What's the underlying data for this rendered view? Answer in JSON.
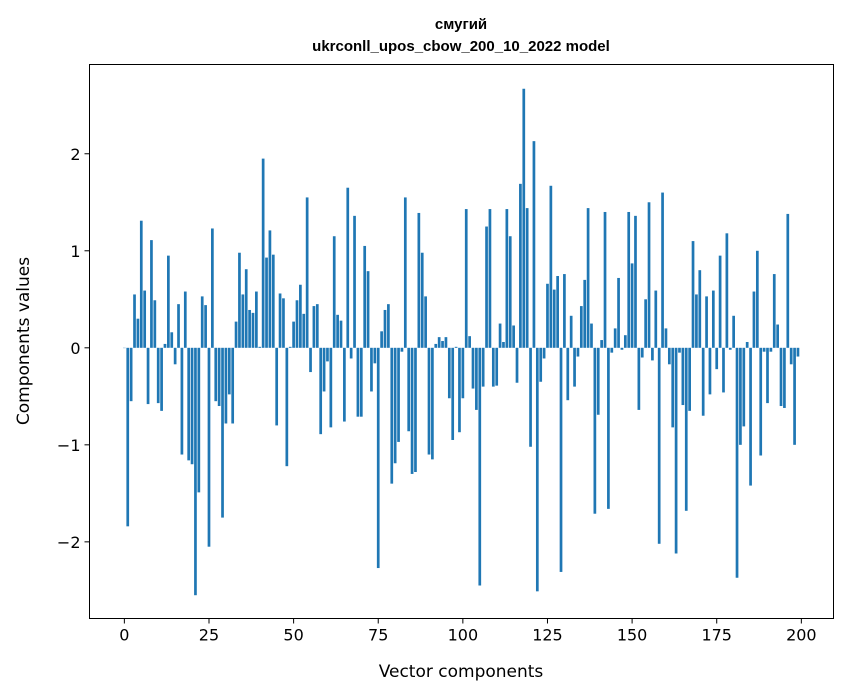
{
  "chart_data": {
    "type": "bar",
    "title": "смугий",
    "subtitle": "ukrconll_upos_cbow_200_10_2022 model",
    "xlabel": "Vector components",
    "ylabel": "Components values",
    "xlim": [
      -10.3,
      209.5
    ],
    "ylim": [
      -2.79,
      2.92
    ],
    "xticks": [
      0,
      25,
      50,
      75,
      100,
      125,
      150,
      175,
      200
    ],
    "xtick_labels": [
      "0",
      "25",
      "50",
      "75",
      "100",
      "125",
      "150",
      "175",
      "200"
    ],
    "yticks": [
      -2,
      -1,
      0,
      1,
      2
    ],
    "ytick_labels": [
      "−2",
      "−1",
      "0",
      "1",
      "2"
    ],
    "grid": false,
    "bar_color": "#1f77b4",
    "values": [
      0.0,
      -1.84,
      -0.55,
      0.55,
      0.3,
      1.31,
      0.59,
      -0.58,
      1.11,
      0.49,
      -0.57,
      -0.65,
      0.04,
      0.95,
      0.16,
      -0.17,
      0.45,
      -1.1,
      0.58,
      -1.16,
      -1.2,
      -2.55,
      -1.49,
      0.53,
      0.44,
      -2.05,
      1.23,
      -0.55,
      -0.6,
      -1.75,
      -0.78,
      -0.48,
      -0.78,
      0.27,
      0.98,
      0.55,
      0.81,
      0.39,
      0.36,
      0.58,
      0.01,
      1.95,
      0.93,
      1.21,
      0.96,
      -0.8,
      0.56,
      0.51,
      -1.22,
      0.01,
      0.27,
      0.49,
      0.65,
      0.35,
      1.55,
      -0.25,
      0.43,
      0.45,
      -0.89,
      -0.45,
      -0.14,
      -0.82,
      1.15,
      0.34,
      0.28,
      -0.76,
      1.65,
      -0.11,
      1.36,
      -0.71,
      -0.71,
      1.05,
      0.79,
      -0.45,
      -0.16,
      -2.27,
      0.17,
      0.39,
      0.45,
      -1.4,
      -1.19,
      -0.97,
      -0.04,
      1.55,
      -0.86,
      -1.3,
      -1.28,
      1.39,
      0.98,
      0.53,
      -1.1,
      -1.15,
      0.04,
      0.11,
      0.07,
      0.11,
      -0.52,
      -0.95,
      0.01,
      -0.87,
      -0.52,
      1.43,
      0.12,
      -0.42,
      -0.64,
      -2.45,
      -0.4,
      1.25,
      1.43,
      -0.4,
      -0.39,
      0.25,
      0.06,
      1.43,
      1.15,
      0.23,
      -0.36,
      1.69,
      2.67,
      1.44,
      -1.02,
      2.13,
      -2.51,
      -0.35,
      -0.11,
      0.66,
      1.67,
      0.6,
      0.74,
      -2.31,
      0.76,
      -0.54,
      0.33,
      -0.4,
      -0.09,
      0.43,
      0.7,
      1.44,
      0.25,
      -1.71,
      -0.69,
      0.08,
      1.4,
      -1.66,
      -0.05,
      0.2,
      0.72,
      -0.02,
      0.13,
      1.4,
      0.87,
      1.36,
      -0.64,
      -0.1,
      0.5,
      1.5,
      -0.13,
      0.59,
      -2.02,
      1.6,
      0.2,
      -0.17,
      -0.82,
      -2.12,
      -0.05,
      -0.59,
      -1.68,
      -0.65,
      1.1,
      0.55,
      0.8,
      -0.7,
      0.53,
      -0.48,
      0.59,
      -0.22,
      0.95,
      -0.46,
      1.18,
      -0.02,
      0.33,
      -2.37,
      -1.0,
      -0.81,
      0.06,
      -1.42,
      0.58,
      1.0,
      -1.11,
      -0.04,
      -0.57,
      -0.04,
      0.76,
      0.24,
      -0.6,
      -0.62,
      1.38,
      -0.17,
      -1.0,
      -0.09
    ]
  }
}
